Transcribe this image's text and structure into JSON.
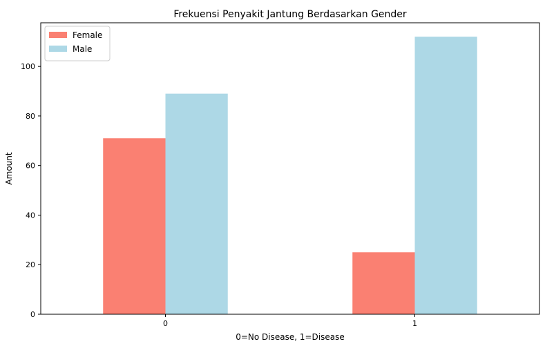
{
  "chart_data": {
    "type": "bar",
    "title": "Frekuensi Penyakit Jantung Berdasarkan Gender",
    "xlabel": "0=No Disease, 1=Disease",
    "ylabel": "Amount",
    "categories": [
      "0",
      "1"
    ],
    "series": [
      {
        "name": "Female",
        "color": "#fa8072",
        "values": [
          71,
          25
        ]
      },
      {
        "name": "Male",
        "color": "#add8e6",
        "values": [
          89,
          112
        ]
      }
    ],
    "ylim": [
      0,
      117.6
    ],
    "yticks": [
      0,
      20,
      40,
      60,
      80,
      100
    ],
    "grid": false,
    "legend_position": "top-left"
  }
}
